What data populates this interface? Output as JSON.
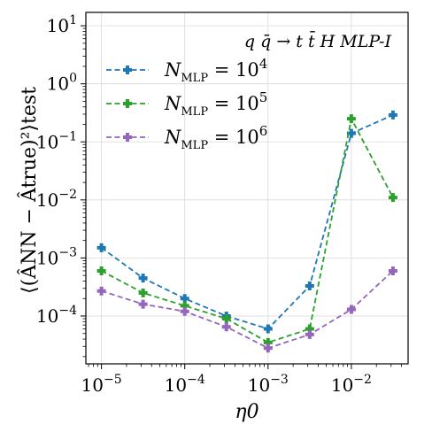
{
  "chart_data": {
    "type": "line",
    "annotation": "q q̄ → t t̄ H  MLP-I",
    "xlabel": "η0",
    "ylabel": "⟨(ÂNN − Âtrue)²⟩test",
    "x_scale": "log",
    "y_scale": "log",
    "xlim": [
      6.5e-06,
      0.048
    ],
    "ylim": [
      1.5e-05,
      17
    ],
    "grid": true,
    "legend_position": "top-left",
    "x_ticks": [
      {
        "value": 1e-05,
        "base": "10",
        "exp": "−5"
      },
      {
        "value": 0.0001,
        "base": "10",
        "exp": "−4"
      },
      {
        "value": 0.001,
        "base": "10",
        "exp": "−3"
      },
      {
        "value": 0.01,
        "base": "10",
        "exp": "−2"
      }
    ],
    "y_ticks": [
      {
        "value": 0.0001,
        "base": "10",
        "exp": "−4"
      },
      {
        "value": 0.001,
        "base": "10",
        "exp": "−3"
      },
      {
        "value": 0.01,
        "base": "10",
        "exp": "−2"
      },
      {
        "value": 0.1,
        "base": "10",
        "exp": "−1"
      },
      {
        "value": 1,
        "base": "10",
        "exp": "0"
      },
      {
        "value": 10,
        "base": "10",
        "exp": "1"
      }
    ],
    "x": [
      1e-05,
      3.16e-05,
      0.0001,
      0.000316,
      0.001,
      0.00316,
      0.01,
      0.0316
    ],
    "series": [
      {
        "name": "NMLP = 10^4",
        "label_sub": "MLP",
        "label_exp": "4",
        "color": "#1f77b4",
        "values": [
          0.0015,
          0.00045,
          0.0002,
          0.0001,
          6e-05,
          0.00033,
          0.14,
          0.29
        ]
      },
      {
        "name": "NMLP = 10^5",
        "label_sub": "MLP",
        "label_exp": "5",
        "color": "#2ca02c",
        "values": [
          0.0006,
          0.00025,
          0.00015,
          9e-05,
          3.5e-05,
          6e-05,
          0.25,
          0.011
        ]
      },
      {
        "name": "NMLP = 10^6",
        "label_sub": "MLP",
        "label_exp": "6",
        "color": "#9467bd",
        "values": [
          0.00027,
          0.00016,
          0.00012,
          6.5e-05,
          2.8e-05,
          4.8e-05,
          0.00013,
          0.0006
        ]
      }
    ]
  }
}
